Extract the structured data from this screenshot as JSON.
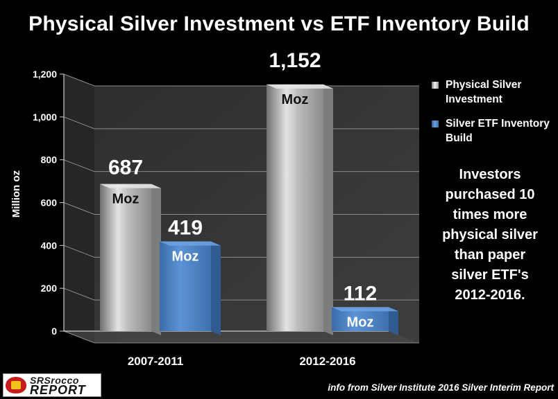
{
  "chart_data": {
    "type": "bar",
    "title": "Physical Silver Investment vs ETF Inventory Build",
    "ylabel": "Million  oz",
    "ylim": [
      0,
      1200
    ],
    "yticks": [
      "0",
      "200",
      "400",
      "600",
      "800",
      "1,000",
      "1,200"
    ],
    "categories": [
      "2007-2011",
      "2012-2016"
    ],
    "series": [
      {
        "name": "Physical Silver Investment",
        "values": [
          687,
          1152
        ],
        "labels": [
          "687",
          "1,152"
        ],
        "unit": "Moz",
        "color": "#d0d0d0"
      },
      {
        "name": "Silver ETF Inventory Build",
        "values": [
          419,
          112
        ],
        "labels": [
          "419",
          "112"
        ],
        "unit": "Moz",
        "color": "#4f86c6"
      }
    ],
    "legend_position": "right"
  },
  "annotation": "Investors\npurchased 10\ntimes more\nphysical silver\nthan paper\nsilver ETF's\n2012-2016.",
  "logo": {
    "line1": "SRSrocco",
    "line2": "REPORT"
  },
  "source": "info from Silver Institute 2016 Silver Interim Report"
}
